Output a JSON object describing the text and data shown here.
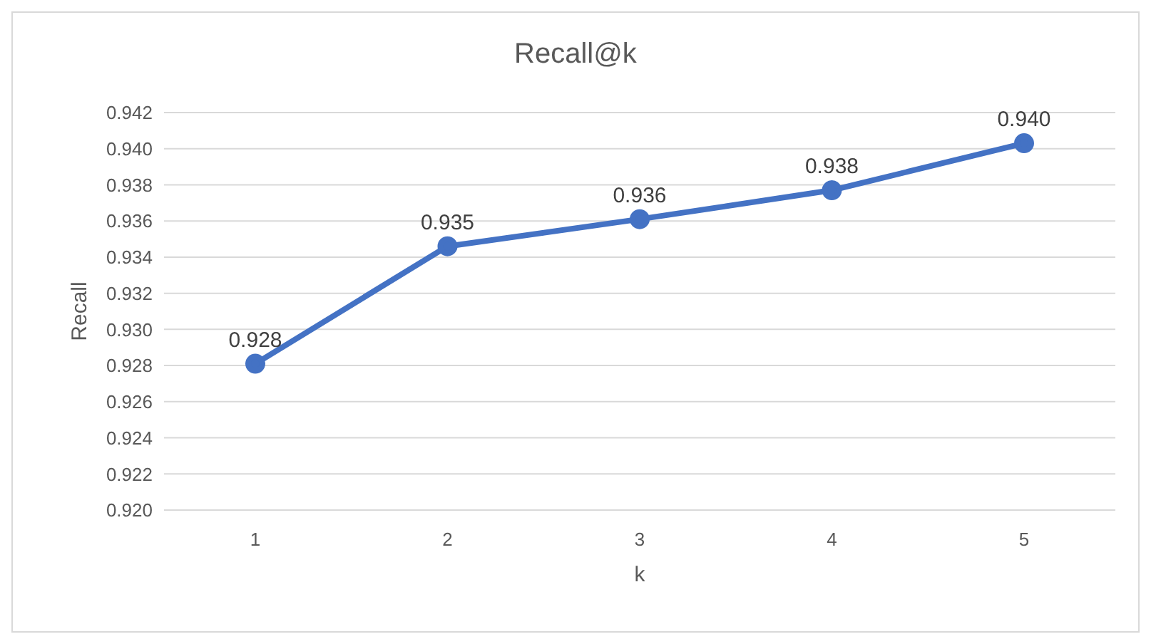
{
  "chart_data": {
    "type": "line",
    "title": "Recall@k",
    "xlabel": "k",
    "ylabel": "Recall",
    "categories": [
      "1",
      "2",
      "3",
      "4",
      "5"
    ],
    "series": [
      {
        "color": "#4472c4",
        "values": [
          0.9281,
          0.9346,
          0.9361,
          0.9377,
          0.9403
        ],
        "value_labels": [
          "0.928",
          "0.935",
          "0.936",
          "0.938",
          "0.940"
        ]
      }
    ],
    "ylim": [
      0.92,
      0.942
    ],
    "yticks": [
      {
        "value": 0.92,
        "label": "0.920"
      },
      {
        "value": 0.922,
        "label": "0.922"
      },
      {
        "value": 0.924,
        "label": "0.924"
      },
      {
        "value": 0.926,
        "label": "0.926"
      },
      {
        "value": 0.928,
        "label": "0.928"
      },
      {
        "value": 0.93,
        "label": "0.930"
      },
      {
        "value": 0.932,
        "label": "0.932"
      },
      {
        "value": 0.934,
        "label": "0.934"
      },
      {
        "value": 0.936,
        "label": "0.936"
      },
      {
        "value": 0.938,
        "label": "0.938"
      },
      {
        "value": 0.94,
        "label": "0.940"
      },
      {
        "value": 0.942,
        "label": "0.942"
      }
    ],
    "grid": "y",
    "legend": false,
    "marker": "circle",
    "line_style": "solid"
  }
}
